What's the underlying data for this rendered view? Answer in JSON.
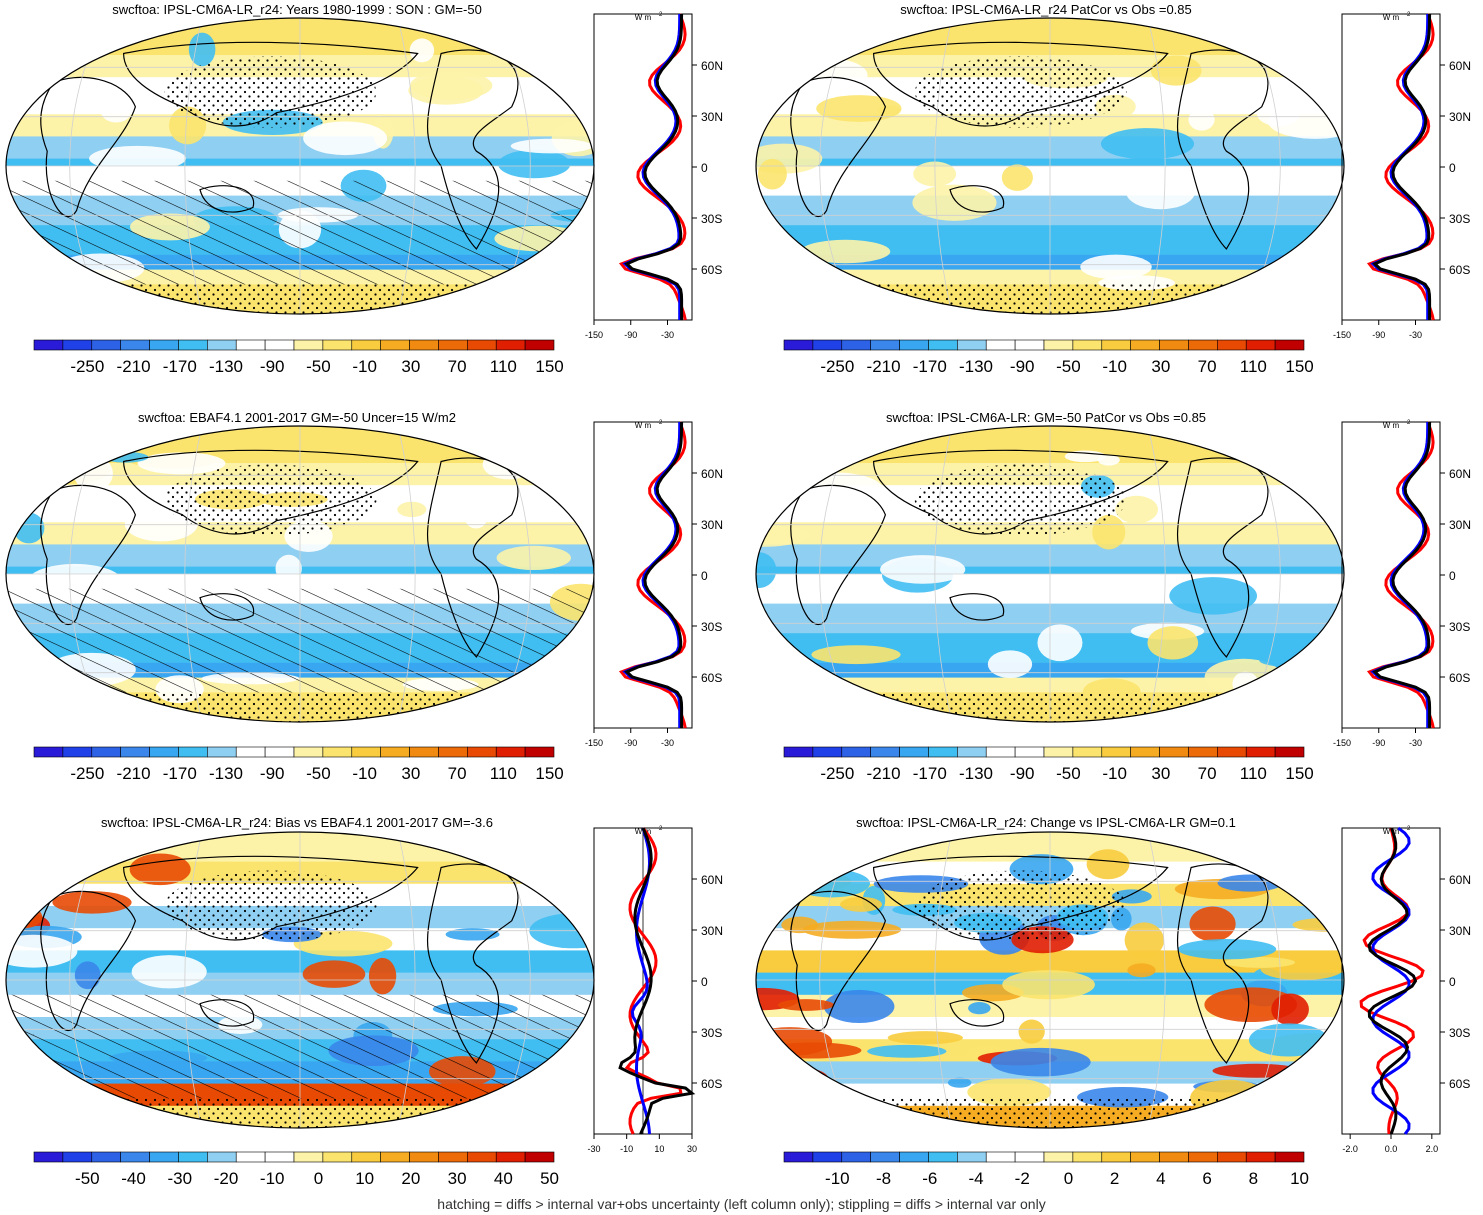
{
  "colors": {
    "scale": [
      "#2a1bd8",
      "#2040e8",
      "#2d62e6",
      "#3a86ea",
      "#38a6f0",
      "#40bef2",
      "#8fcff2",
      "#ffffff",
      "#ffffff",
      "#fdf3a8",
      "#fbe46e",
      "#f8cc3e",
      "#f5ac22",
      "#f08a10",
      "#ec6a08",
      "#e84a04",
      "#e01e02",
      "#c00000"
    ],
    "land": "#000000",
    "profile_model": "#ff0000",
    "profile_obs": "#0000ff",
    "profile_mean": "#000000",
    "grid": "#d0d0d0"
  },
  "footer": "hatching = diffs > internal var+obs uncertainty (left column only); stippling = diffs > internal var only",
  "panels": [
    {
      "title": "swcftoa: IPSL-CM6A-LR_r24: Years 1980-1999 : SON : GM=-50",
      "colorbar_labels": [
        "-250",
        "-210",
        "-170",
        "-130",
        "-90",
        "-50",
        "-10",
        "30",
        "70",
        "110",
        "150"
      ],
      "profile_ticks": [
        "-150",
        "-90",
        "-30"
      ],
      "profile_xlim": [
        -150,
        10
      ],
      "hatched": true,
      "kind": "abs"
    },
    {
      "title": "swcftoa: IPSL-CM6A-LR_r24 PatCor vs Obs =0.85",
      "colorbar_labels": [
        "-250",
        "-210",
        "-170",
        "-130",
        "-90",
        "-50",
        "-10",
        "30",
        "70",
        "110",
        "150"
      ],
      "profile_ticks": [
        "-150",
        "-90",
        "-30"
      ],
      "profile_xlim": [
        -150,
        10
      ],
      "hatched": false,
      "kind": "abs"
    },
    {
      "title": "swcftoa: EBAF4.1 2001-2017 GM=-50 Uncer=15 W/m2",
      "colorbar_labels": [
        "-250",
        "-210",
        "-170",
        "-130",
        "-90",
        "-50",
        "-10",
        "30",
        "70",
        "110",
        "150"
      ],
      "profile_ticks": [
        "-150",
        "-90",
        "-30"
      ],
      "profile_xlim": [
        -150,
        10
      ],
      "hatched": true,
      "kind": "abs"
    },
    {
      "title": "swcftoa: IPSL-CM6A-LR: GM=-50 PatCor vs Obs =0.85",
      "colorbar_labels": [
        "-250",
        "-210",
        "-170",
        "-130",
        "-90",
        "-50",
        "-10",
        "30",
        "70",
        "110",
        "150"
      ],
      "profile_ticks": [
        "-150",
        "-90",
        "-30"
      ],
      "profile_xlim": [
        -150,
        10
      ],
      "hatched": false,
      "kind": "abs"
    },
    {
      "title": "swcftoa: IPSL-CM6A-LR_r24: Bias vs EBAF4.1 2001-2017  GM=-3.6",
      "colorbar_labels": [
        "-50",
        "-40",
        "-30",
        "-20",
        "-10",
        "0",
        "10",
        "20",
        "30",
        "40",
        "50"
      ],
      "profile_ticks": [
        "-30",
        "-10",
        "10",
        "30"
      ],
      "profile_xlim": [
        -30,
        30
      ],
      "hatched": true,
      "kind": "bias"
    },
    {
      "title": "swcftoa: IPSL-CM6A-LR_r24: Change vs IPSL-CM6A-LR GM=0.1",
      "colorbar_labels": [
        "-10",
        "-8",
        "-6",
        "-4",
        "-2",
        "0",
        "2",
        "4",
        "6",
        "8",
        "10"
      ],
      "profile_ticks": [
        "-2.0",
        "0.0",
        "2.0"
      ],
      "profile_xlim": [
        -2.4,
        2.4
      ],
      "hatched": false,
      "kind": "change"
    }
  ],
  "lat_ticks": [
    "60N",
    "30N",
    "0",
    "30S",
    "60S"
  ],
  "profile_unit": "W m",
  "profile_unit_exp": "-2"
}
